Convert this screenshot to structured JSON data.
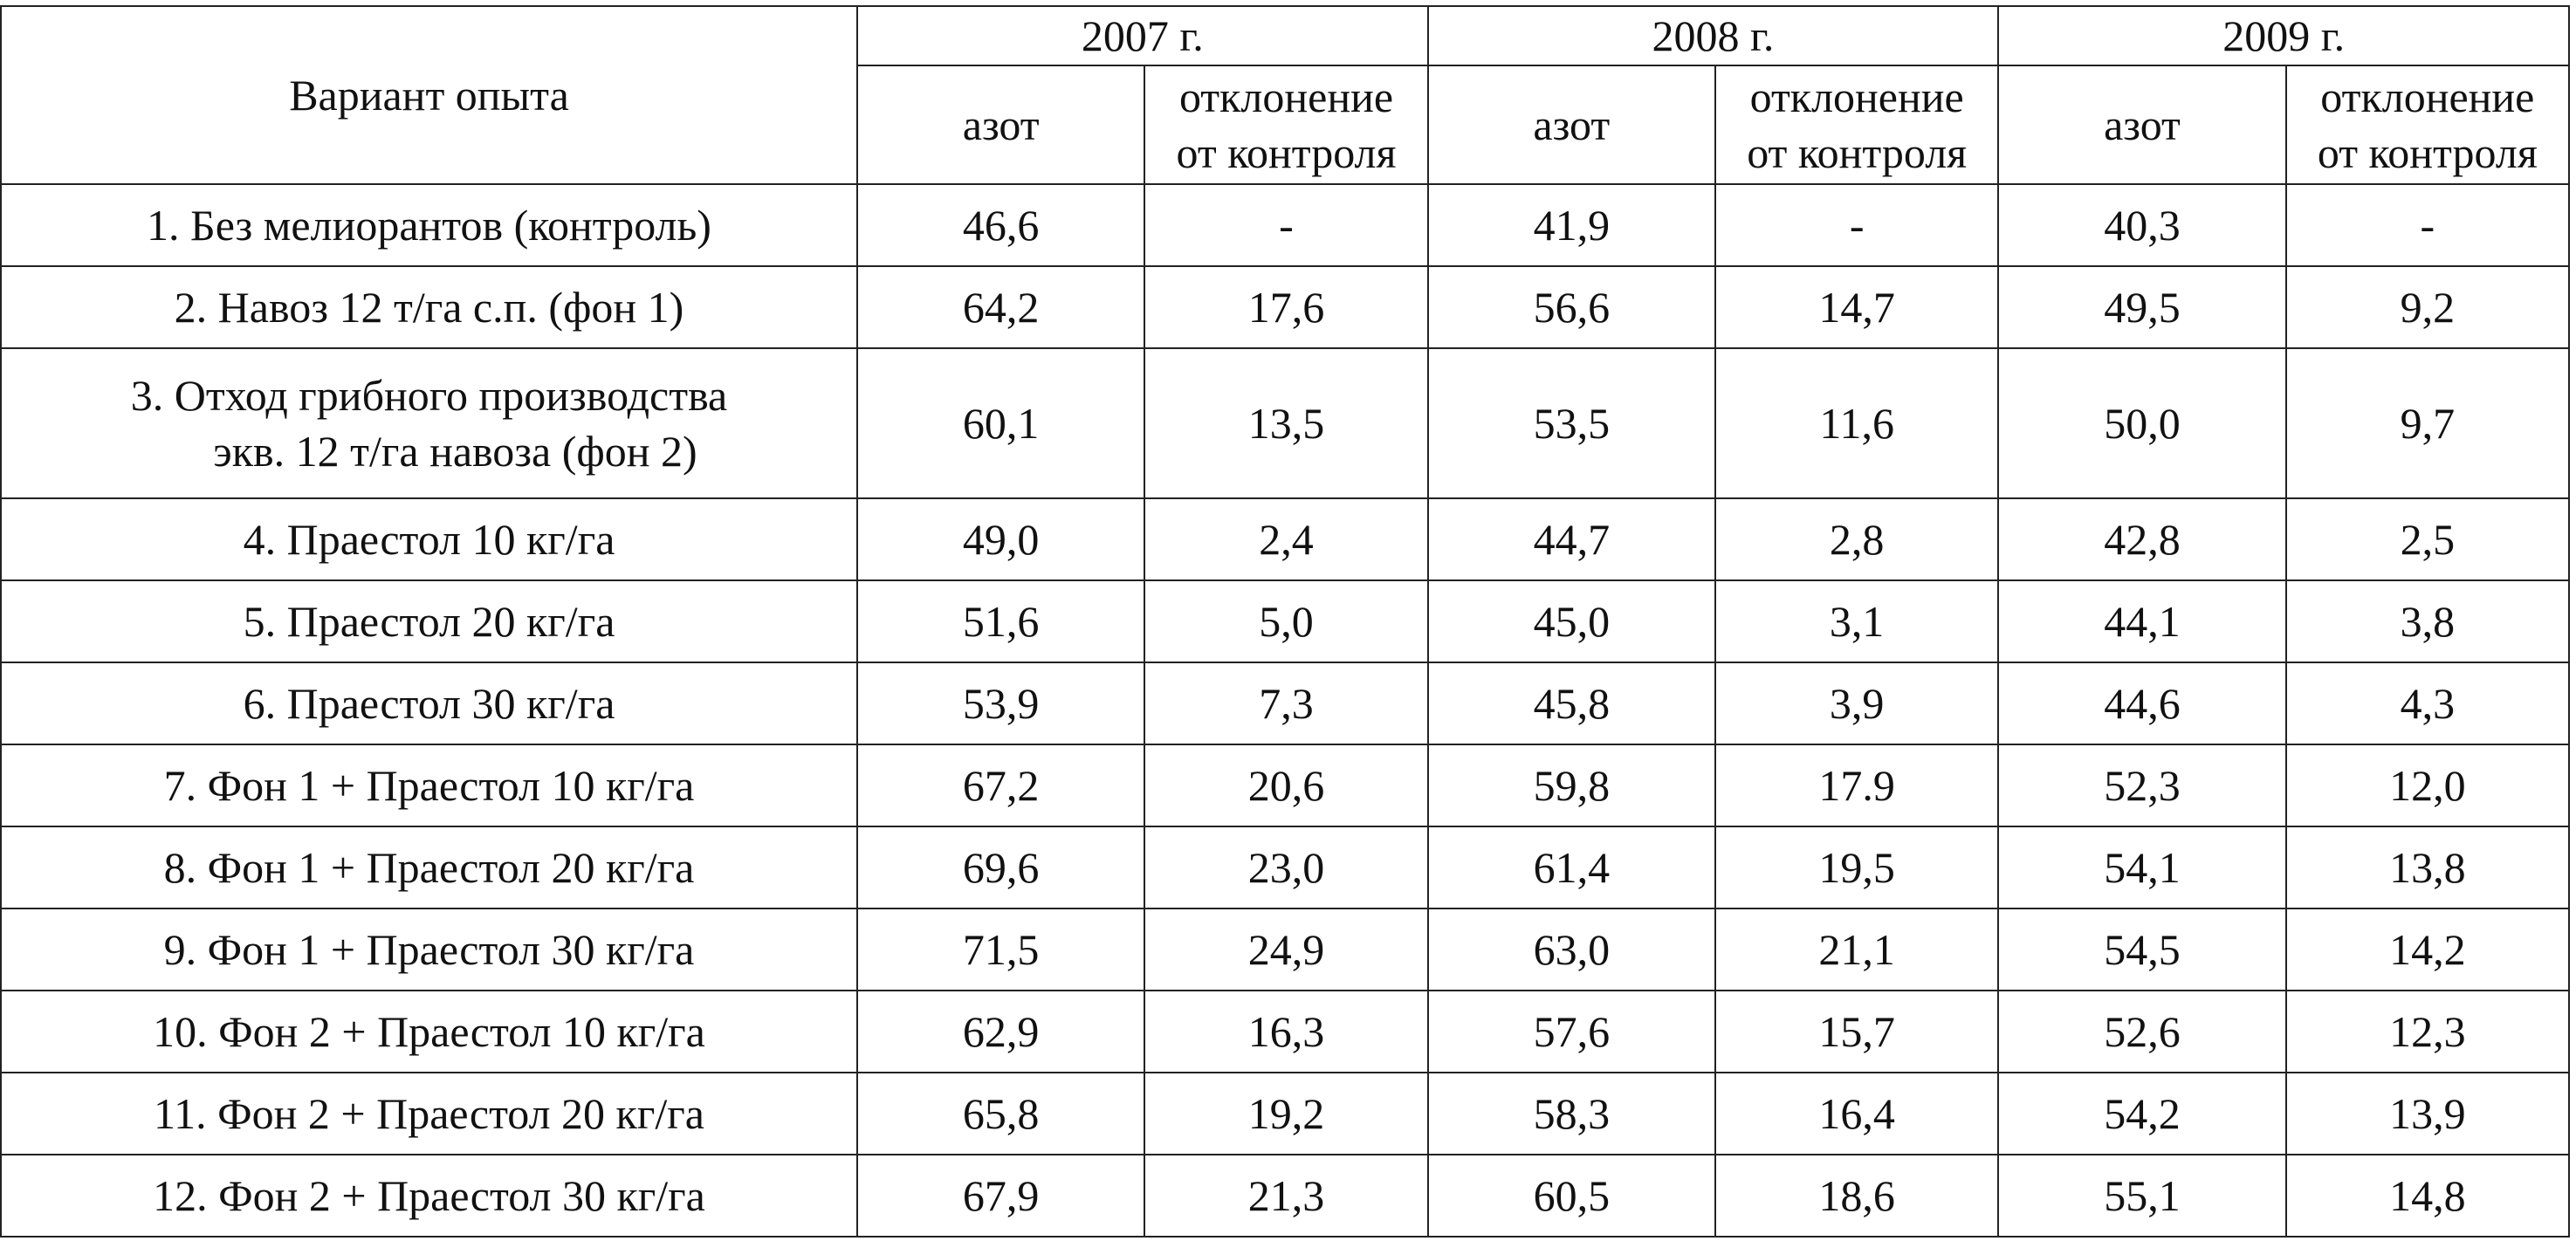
{
  "table": {
    "header": {
      "variant_label": "Вариант опыта",
      "years": [
        "2007 г.",
        "2008 г.",
        "2009 г."
      ],
      "subcolumns": {
        "nitrogen": "азот",
        "deviation_line1": "отклонение",
        "deviation_line2": "от контроля"
      }
    },
    "rows": [
      {
        "variant": "1. Без мелиорантов (контроль)",
        "variant_line2": "",
        "values": [
          "46,6",
          "-",
          "41,9",
          "-",
          "40,3",
          "-"
        ]
      },
      {
        "variant": "2. Навоз 12 т/га с.п. (фон 1)",
        "variant_line2": "",
        "values": [
          "64,2",
          "17,6",
          "56,6",
          "14,7",
          "49,5",
          "9,2"
        ]
      },
      {
        "variant": "3. Отход грибного производства",
        "variant_line2": "экв. 12 т/га навоза (фон 2)",
        "values": [
          "60,1",
          "13,5",
          "53,5",
          "11,6",
          "50,0",
          "9,7"
        ]
      },
      {
        "variant": "4. Праестол 10 кг/га",
        "variant_line2": "",
        "values": [
          "49,0",
          "2,4",
          "44,7",
          "2,8",
          "42,8",
          "2,5"
        ]
      },
      {
        "variant": "5. Праестол 20 кг/га",
        "variant_line2": "",
        "values": [
          "51,6",
          "5,0",
          "45,0",
          "3,1",
          "44,1",
          "3,8"
        ]
      },
      {
        "variant": "6. Праестол 30 кг/га",
        "variant_line2": "",
        "values": [
          "53,9",
          "7,3",
          "45,8",
          "3,9",
          "44,6",
          "4,3"
        ]
      },
      {
        "variant": "7. Фон 1 + Праестол 10 кг/га",
        "variant_line2": "",
        "values": [
          "67,2",
          "20,6",
          "59,8",
          "17.9",
          "52,3",
          "12,0"
        ]
      },
      {
        "variant": "8. Фон 1 + Праестол 20 кг/га",
        "variant_line2": "",
        "values": [
          "69,6",
          "23,0",
          "61,4",
          "19,5",
          "54,1",
          "13,8"
        ]
      },
      {
        "variant": "9. Фон 1 + Праестол 30 кг/га",
        "variant_line2": "",
        "values": [
          "71,5",
          "24,9",
          "63,0",
          "21,1",
          "54,5",
          "14,2"
        ]
      },
      {
        "variant": "10. Фон 2 + Праестол 10 кг/га",
        "variant_line2": "",
        "values": [
          "62,9",
          "16,3",
          "57,6",
          "15,7",
          "52,6",
          "12,3"
        ]
      },
      {
        "variant": "11. Фон 2 + Праестол 20 кг/га",
        "variant_line2": "",
        "values": [
          "65,8",
          "19,2",
          "58,3",
          "16,4",
          "54,2",
          "13,9"
        ]
      },
      {
        "variant": "12. Фон 2 + Праестол 30 кг/га",
        "variant_line2": "",
        "values": [
          "67,9",
          "21,3",
          "60,5",
          "18,6",
          "55,1",
          "14,8"
        ]
      }
    ]
  }
}
